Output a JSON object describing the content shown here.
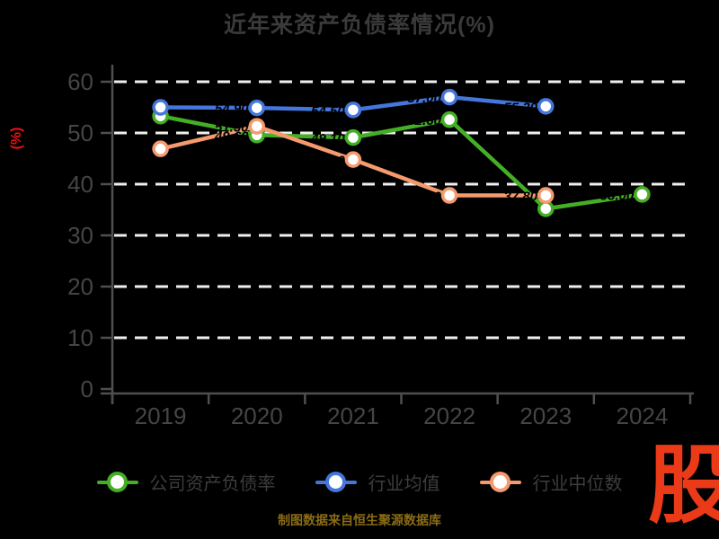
{
  "chart_data": {
    "type": "line",
    "title": "近年来资产负债率情况(%)",
    "categories": [
      "2019",
      "2020",
      "2021",
      "2022",
      "2023",
      "2024"
    ],
    "series": [
      {
        "name": "公司资产负债率",
        "color": "#44af25",
        "values": [
          53.3,
          49.6,
          49.1,
          52.6,
          35.2,
          38.0
        ]
      },
      {
        "name": "行业均值",
        "color": "#4476dc",
        "values": [
          55.0,
          54.9,
          54.5,
          57.0,
          55.2,
          null
        ]
      },
      {
        "name": "行业中位数",
        "color": "#f59a6e",
        "values": [
          46.9,
          51.3,
          44.8,
          37.8,
          37.8,
          null
        ]
      }
    ],
    "xlabel": "",
    "ylabel": "(%)",
    "ylim": [
      0,
      60
    ],
    "yticks": [
      0,
      10,
      20,
      30,
      40,
      50,
      60
    ],
    "grid": true,
    "grid_style": "white-dashed",
    "legend_position": "bottom",
    "marker": "circle-white-fill",
    "point_labels": "black (invisible on black background, visible only where overlapping lines)"
  },
  "footer": {
    "text": "制图数据来自恒生聚源数据库"
  },
  "branding": {
    "logo_text": "股"
  },
  "colors": {
    "background": "#000000",
    "title_text": "#3a3a3a",
    "axis_line": "#4f4f4f",
    "tick_label": "#454545",
    "grid_line": "#efefef",
    "ylabel_text": "#ee1010",
    "legend_text": "#3d3d3d",
    "footer_text": "#8a6c15",
    "logo_text": "#ea3a18",
    "point_label": "#000000"
  }
}
